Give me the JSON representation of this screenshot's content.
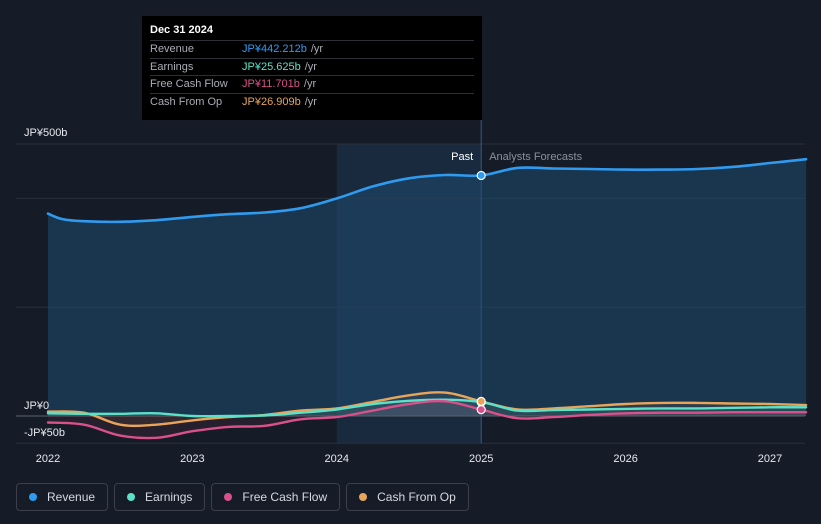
{
  "chart_data": {
    "type": "line",
    "x_ticks": [
      "2022",
      "2023",
      "2024",
      "2025",
      "2026",
      "2027"
    ],
    "y_tick_labels": {
      "top": "JP¥500b",
      "zero": "JP¥0",
      "bottom": "-JP¥50b"
    },
    "ylim": [
      -50,
      500
    ],
    "past_label": "Past",
    "forecast_label": "Analysts Forecasts",
    "divider_x": 2025.0,
    "highlight_start_x": 2024.0,
    "series": [
      {
        "name": "Revenue",
        "color": "#2f9bf0",
        "points": [
          [
            2022.0,
            372
          ],
          [
            2022.1,
            362
          ],
          [
            2022.25,
            358
          ],
          [
            2022.5,
            357
          ],
          [
            2022.75,
            360
          ],
          [
            2023.0,
            366
          ],
          [
            2023.25,
            371
          ],
          [
            2023.5,
            374
          ],
          [
            2023.75,
            382
          ],
          [
            2024.0,
            400
          ],
          [
            2024.25,
            422
          ],
          [
            2024.5,
            437
          ],
          [
            2024.75,
            443
          ],
          [
            2025.0,
            442.2
          ],
          [
            2025.25,
            456
          ],
          [
            2025.5,
            455
          ],
          [
            2025.75,
            454
          ],
          [
            2026.0,
            453
          ],
          [
            2026.25,
            453
          ],
          [
            2026.5,
            454
          ],
          [
            2026.75,
            458
          ],
          [
            2027.0,
            465
          ],
          [
            2027.25,
            472
          ]
        ]
      },
      {
        "name": "Earnings",
        "color": "#5ce1c9",
        "points": [
          [
            2022.0,
            5
          ],
          [
            2022.25,
            4
          ],
          [
            2022.5,
            4
          ],
          [
            2022.75,
            5
          ],
          [
            2023.0,
            0
          ],
          [
            2023.25,
            0
          ],
          [
            2023.5,
            1
          ],
          [
            2023.75,
            6
          ],
          [
            2024.0,
            12
          ],
          [
            2024.25,
            22
          ],
          [
            2024.5,
            28
          ],
          [
            2024.75,
            30
          ],
          [
            2025.0,
            25.6
          ],
          [
            2025.25,
            10
          ],
          [
            2025.5,
            11
          ],
          [
            2025.75,
            12
          ],
          [
            2026.0,
            13
          ],
          [
            2026.25,
            14
          ],
          [
            2026.5,
            14
          ],
          [
            2026.75,
            15
          ],
          [
            2027.0,
            16
          ],
          [
            2027.25,
            16
          ]
        ]
      },
      {
        "name": "Free Cash Flow",
        "color": "#d9508a",
        "points": [
          [
            2022.0,
            -12
          ],
          [
            2022.25,
            -16
          ],
          [
            2022.5,
            -36
          ],
          [
            2022.75,
            -40
          ],
          [
            2023.0,
            -28
          ],
          [
            2023.25,
            -20
          ],
          [
            2023.5,
            -18
          ],
          [
            2023.75,
            -6
          ],
          [
            2024.0,
            -2
          ],
          [
            2024.25,
            10
          ],
          [
            2024.5,
            22
          ],
          [
            2024.75,
            27
          ],
          [
            2025.0,
            11.7
          ],
          [
            2025.25,
            -4
          ],
          [
            2025.5,
            -2
          ],
          [
            2025.75,
            2
          ],
          [
            2026.0,
            5
          ],
          [
            2026.25,
            6
          ],
          [
            2026.5,
            6
          ],
          [
            2026.75,
            7
          ],
          [
            2027.0,
            7
          ],
          [
            2027.25,
            7
          ]
        ]
      },
      {
        "name": "Cash From Op",
        "color": "#e8a55a",
        "points": [
          [
            2022.0,
            8
          ],
          [
            2022.25,
            6
          ],
          [
            2022.5,
            -16
          ],
          [
            2022.75,
            -16
          ],
          [
            2023.0,
            -8
          ],
          [
            2023.25,
            -2
          ],
          [
            2023.5,
            2
          ],
          [
            2023.75,
            10
          ],
          [
            2024.0,
            14
          ],
          [
            2024.25,
            26
          ],
          [
            2024.5,
            38
          ],
          [
            2024.75,
            43
          ],
          [
            2025.0,
            26.9
          ],
          [
            2025.25,
            12
          ],
          [
            2025.5,
            14
          ],
          [
            2025.75,
            18
          ],
          [
            2026.0,
            22
          ],
          [
            2026.25,
            24
          ],
          [
            2026.5,
            24
          ],
          [
            2026.75,
            23
          ],
          [
            2027.0,
            22
          ],
          [
            2027.25,
            20
          ]
        ]
      }
    ]
  },
  "tooltip": {
    "date": "Dec 31 2024",
    "rows": [
      {
        "label": "Revenue",
        "value": "JP¥442.212b",
        "unit": "/yr",
        "color": "#2f9bf0"
      },
      {
        "label": "Earnings",
        "value": "JP¥25.625b",
        "unit": "/yr",
        "color": "#5ce1c9"
      },
      {
        "label": "Free Cash Flow",
        "value": "JP¥11.701b",
        "unit": "/yr",
        "color": "#d9508a"
      },
      {
        "label": "Cash From Op",
        "value": "JP¥26.909b",
        "unit": "/yr",
        "color": "#e8a55a"
      }
    ]
  },
  "legend": [
    {
      "label": "Revenue",
      "color": "#2f9bf0"
    },
    {
      "label": "Earnings",
      "color": "#5ce1c9"
    },
    {
      "label": "Free Cash Flow",
      "color": "#d9508a"
    },
    {
      "label": "Cash From Op",
      "color": "#e8a55a"
    }
  ]
}
